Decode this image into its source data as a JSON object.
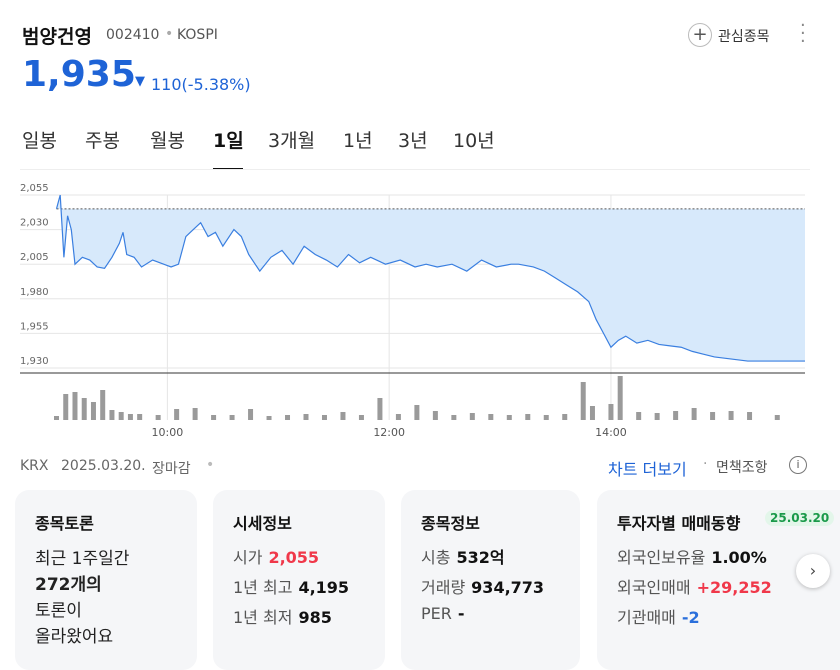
{
  "header": {
    "name": "범양건영",
    "code": "002410",
    "market": "KOSPI",
    "watch": "관심종목"
  },
  "price": {
    "value": "1,935",
    "change": "110(-5.38%)"
  },
  "tabs": [
    "일봉",
    "주봉",
    "월봉",
    "1일",
    "3개월",
    "1년",
    "3년",
    "10년"
  ],
  "chart_data": {
    "type": "line",
    "color": "#3a7fe0",
    "fill": "#d7e9fb",
    "reference": 2045,
    "x": [
      0,
      2,
      4,
      6,
      8,
      10,
      14,
      18,
      22,
      26,
      30,
      34,
      36,
      38,
      42,
      46,
      52,
      58,
      62,
      66,
      70,
      74,
      78,
      82,
      86,
      90,
      96,
      100,
      104,
      110,
      116,
      122,
      128,
      134,
      140,
      146,
      152,
      158,
      164,
      170,
      178,
      186,
      194,
      200,
      206,
      214,
      222,
      230,
      238,
      246,
      250,
      258,
      264,
      270,
      276,
      282,
      288,
      292,
      296,
      300,
      304,
      308,
      314,
      320,
      326,
      332,
      338,
      344,
      350,
      356,
      362,
      368,
      374,
      380,
      405
    ],
    "values": [
      2045,
      2055,
      2010,
      2040,
      2030,
      2005,
      2010,
      2008,
      2003,
      2002,
      2010,
      2020,
      2028,
      2012,
      2010,
      2003,
      2008,
      2005,
      2003,
      2005,
      2025,
      2030,
      2035,
      2025,
      2028,
      2018,
      2030,
      2025,
      2012,
      2000,
      2010,
      2015,
      2005,
      2018,
      2012,
      2008,
      2003,
      2012,
      2006,
      2010,
      2005,
      2008,
      2003,
      2005,
      2003,
      2005,
      2000,
      2008,
      2003,
      2005,
      2005,
      2003,
      2000,
      1995,
      1990,
      1985,
      1978,
      1965,
      1955,
      1945,
      1950,
      1953,
      1948,
      1950,
      1947,
      1946,
      1945,
      1942,
      1940,
      1938,
      1937,
      1936,
      1935,
      1935,
      1935
    ],
    "xlim": [
      0,
      405
    ],
    "ylim": [
      1930,
      2055
    ],
    "xticks": [
      {
        "value": 60,
        "label": "10:00"
      },
      {
        "value": 180,
        "label": "12:00"
      },
      {
        "value": 300,
        "label": "14:00"
      }
    ],
    "yticks": [
      {
        "value": 2055,
        "label": "2,055"
      },
      {
        "value": 2030,
        "label": "2,030"
      },
      {
        "value": 2005,
        "label": "2,005"
      },
      {
        "value": 1980,
        "label": "1,980"
      },
      {
        "value": 1955,
        "label": "1,955"
      },
      {
        "value": 1930,
        "label": "1,930"
      }
    ],
    "grid": true,
    "volume": {
      "color": "#9a9a9a",
      "x": [
        0,
        5,
        10,
        15,
        20,
        25,
        30,
        35,
        40,
        45,
        55,
        65,
        75,
        85,
        95,
        105,
        115,
        125,
        135,
        145,
        155,
        165,
        175,
        185,
        195,
        205,
        215,
        225,
        235,
        245,
        255,
        265,
        275,
        285,
        290,
        300,
        305,
        315,
        325,
        335,
        345,
        355,
        365,
        375,
        390
      ],
      "values": [
        4,
        26,
        28,
        22,
        18,
        30,
        10,
        8,
        6,
        6,
        5,
        11,
        12,
        5,
        5,
        11,
        4,
        5,
        6,
        5,
        8,
        5,
        22,
        6,
        15,
        9,
        5,
        7,
        6,
        5,
        6,
        5,
        6,
        38,
        14,
        16,
        44,
        8,
        7,
        9,
        12,
        8,
        9,
        8,
        5
      ]
    }
  },
  "footer": {
    "exchange": "KRX",
    "date": "2025.03.20.",
    "status": "장마감",
    "more": "차트 더보기",
    "disclaimer": "면책조항"
  },
  "cards": [
    {
      "title": "종목토론",
      "lines": [
        "최근 1주일간",
        "272개의",
        "토론이",
        "올라왔어요"
      ]
    },
    {
      "title": "시세정보",
      "rows": [
        [
          "시가",
          "2,055"
        ],
        [
          "1년 최고",
          "4,195"
        ],
        [
          "1년 최저",
          "985"
        ]
      ]
    },
    {
      "title": "종목정보",
      "rows": [
        [
          "시총",
          "532억"
        ],
        [
          "거래량",
          "934,773"
        ],
        [
          "PER",
          "-"
        ]
      ]
    },
    {
      "title": "투자자별 매매동향",
      "badge": "25.03.20",
      "rows": [
        [
          "외국인보유율",
          "1.00%"
        ],
        [
          "외국인매매",
          "+29,252"
        ],
        [
          "기관매매",
          "-2"
        ]
      ]
    }
  ]
}
